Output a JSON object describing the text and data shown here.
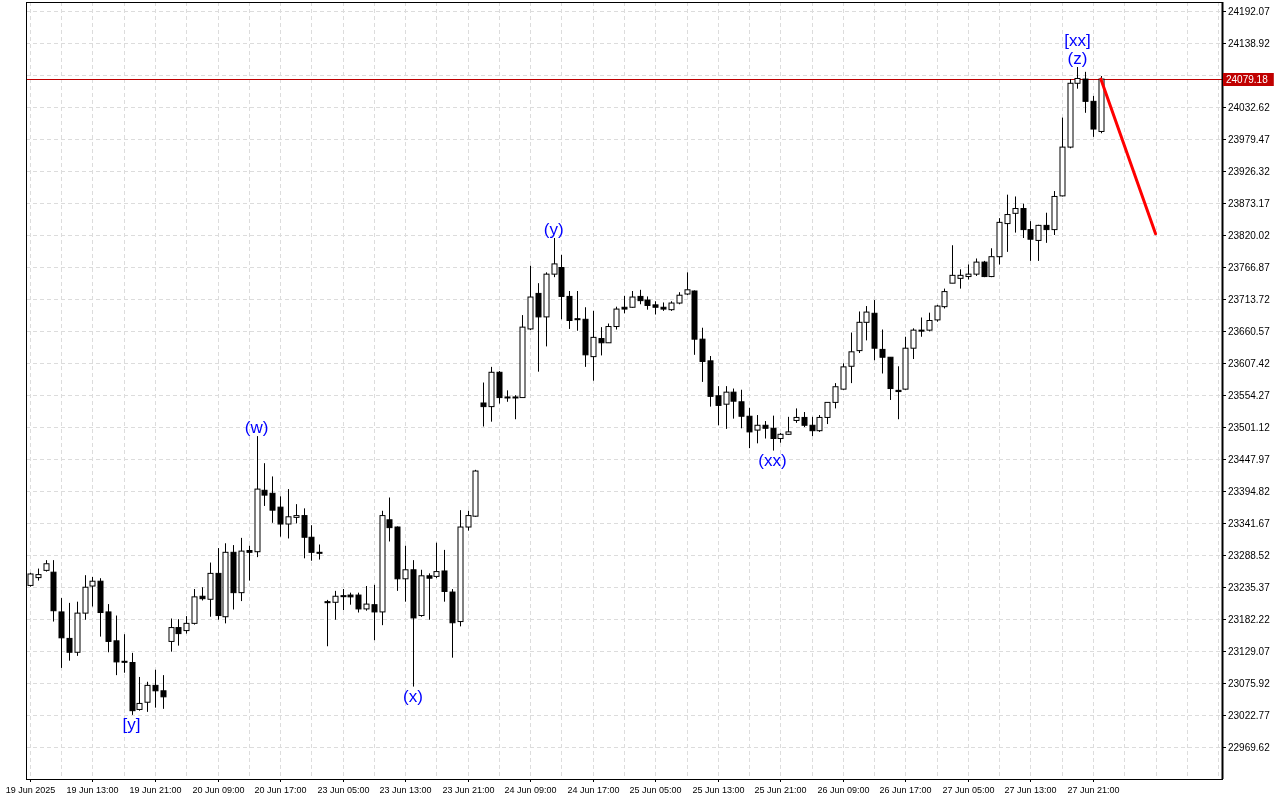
{
  "chart_data": {
    "type": "candlestick",
    "color": "#000000",
    "categories": [
      "19 Jun 2025",
      null,
      null,
      null,
      null,
      null,
      null,
      null,
      "19 Jun 13:00",
      null,
      null,
      null,
      null,
      null,
      null,
      null,
      "19 Jun 21:00",
      null,
      null,
      null,
      null,
      null,
      null,
      null,
      "20 Jun 09:00",
      null,
      null,
      null,
      null,
      null,
      null,
      null,
      "20 Jun 17:00",
      null,
      null,
      null,
      null,
      null,
      null,
      null,
      "23 Jun 05:00",
      null,
      null,
      null,
      null,
      null,
      null,
      null,
      "23 Jun 13:00",
      null,
      null,
      null,
      null,
      null,
      null,
      null,
      "23 Jun 21:00",
      null,
      null,
      null,
      null,
      null,
      null,
      null,
      "24 Jun 09:00",
      null,
      null,
      null,
      null,
      null,
      null,
      null,
      "24 Jun 17:00",
      null,
      null,
      null,
      null,
      null,
      null,
      null,
      "25 Jun 05:00",
      null,
      null,
      null,
      null,
      null,
      null,
      null,
      "25 Jun 13:00",
      null,
      null,
      null,
      null,
      null,
      null,
      null,
      "25 Jun 21:00",
      null,
      null,
      null,
      null,
      null,
      null,
      null,
      "26 Jun 09:00",
      null,
      null,
      null,
      null,
      null,
      null,
      null,
      "26 Jun 17:00",
      null,
      null,
      null,
      null,
      null,
      null,
      null,
      "27 Jun 05:00",
      null,
      null,
      null,
      null,
      null,
      null,
      null,
      "27 Jun 13:00",
      null,
      null,
      null,
      null,
      null,
      null,
      null,
      "27 Jun 21:00",
      null,
      null,
      null,
      null,
      null,
      null,
      null,
      null,
      null,
      null,
      null,
      null,
      null,
      null,
      null,
      null
    ],
    "ohlc": [
      [
        23238,
        23259,
        23236,
        23257
      ],
      [
        23251,
        23266,
        23246,
        23256
      ],
      [
        23263,
        23280,
        23261,
        23274
      ],
      [
        23260,
        23280,
        23178,
        23196
      ],
      [
        23194,
        23217,
        23101,
        23151
      ],
      [
        23150,
        23209,
        23113,
        23127
      ],
      [
        23127,
        23211,
        23121,
        23192
      ],
      [
        23192,
        23255,
        23181,
        23235
      ],
      [
        23237,
        23252,
        23203,
        23245
      ],
      [
        23245,
        23250,
        23153,
        23193
      ],
      [
        23194,
        23207,
        23127,
        23145
      ],
      [
        23146,
        23188,
        23089,
        23111
      ],
      [
        23112,
        23157,
        23093,
        23111
      ],
      [
        23110,
        23126,
        23023,
        23030
      ],
      [
        23032,
        23086,
        23030,
        23042
      ],
      [
        23044,
        23078,
        23028,
        23072
      ],
      [
        23072,
        23098,
        23035,
        23063
      ],
      [
        23063,
        23089,
        23033,
        23053
      ],
      [
        23145,
        23183,
        23128,
        23168
      ],
      [
        23168,
        23182,
        23138,
        23158
      ],
      [
        23163,
        23187,
        23158,
        23175
      ],
      [
        23175,
        23232,
        23173,
        23219
      ],
      [
        23220,
        23235,
        23213,
        23216
      ],
      [
        23215,
        23276,
        23186,
        23258
      ],
      [
        23258,
        23300,
        23181,
        23188
      ],
      [
        23186,
        23308,
        23175,
        23293
      ],
      [
        23293,
        23305,
        23198,
        23226
      ],
      [
        23226,
        23317,
        23212,
        23295
      ],
      [
        23296,
        23304,
        23246,
        23293
      ],
      [
        23294,
        23486,
        23285,
        23398
      ],
      [
        23396,
        23441,
        23370,
        23388
      ],
      [
        23391,
        23419,
        23342,
        23363
      ],
      [
        23368,
        23386,
        23319,
        23340
      ],
      [
        23340,
        23398,
        23316,
        23352
      ],
      [
        23351,
        23373,
        23341,
        23354
      ],
      [
        23354,
        23366,
        23283,
        23318
      ],
      [
        23318,
        23338,
        23279,
        23293
      ],
      [
        23293,
        23306,
        23281,
        23292
      ],
      [
        23211,
        23214,
        23137,
        23210
      ],
      [
        23210,
        23229,
        23181,
        23220
      ],
      [
        23221,
        23232,
        23197,
        23220
      ],
      [
        23222,
        23226,
        23206,
        23219
      ],
      [
        23222,
        23226,
        23193,
        23199
      ],
      [
        23199,
        23237,
        23196,
        23207
      ],
      [
        23206,
        23239,
        23147,
        23194
      ],
      [
        23194,
        23362,
        23172,
        23354
      ],
      [
        23347,
        23384,
        23311,
        23334
      ],
      [
        23335,
        23336,
        23229,
        23249
      ],
      [
        23249,
        23304,
        23211,
        23264
      ],
      [
        23264,
        23280,
        23070,
        23184
      ],
      [
        23188,
        23264,
        23186,
        23254
      ],
      [
        23254,
        23258,
        23181,
        23250
      ],
      [
        23253,
        23309,
        23250,
        23261
      ],
      [
        23262,
        23297,
        23211,
        23228
      ],
      [
        23227,
        23232,
        23118,
        23176
      ],
      [
        23178,
        23363,
        23170,
        23335
      ],
      [
        23335,
        23362,
        23329,
        23354
      ],
      [
        23353,
        23430,
        23352,
        23428
      ],
      [
        23541,
        23575,
        23502,
        23535
      ],
      [
        23535,
        23601,
        23510,
        23592
      ],
      [
        23592,
        23594,
        23540,
        23550
      ],
      [
        23551,
        23562,
        23543,
        23550
      ],
      [
        23551,
        23554,
        23514,
        23550
      ],
      [
        23550,
        23687,
        23550,
        23667
      ],
      [
        23664,
        23769,
        23662,
        23717
      ],
      [
        23723,
        23740,
        23593,
        23684
      ],
      [
        23684,
        23758,
        23635,
        23755
      ],
      [
        23755,
        23815,
        23750,
        23772
      ],
      [
        23766,
        23787,
        23680,
        23718
      ],
      [
        23718,
        23727,
        23664,
        23678
      ],
      [
        23681,
        23727,
        23661,
        23680
      ],
      [
        23680,
        23700,
        23601,
        23621
      ],
      [
        23618,
        23694,
        23578,
        23650
      ],
      [
        23648,
        23667,
        23620,
        23641
      ],
      [
        23641,
        23673,
        23641,
        23668
      ],
      [
        23668,
        23701,
        23663,
        23697
      ],
      [
        23700,
        23719,
        23690,
        23697
      ],
      [
        23700,
        23727,
        23699,
        23717
      ],
      [
        23718,
        23729,
        23705,
        23711
      ],
      [
        23712,
        23718,
        23696,
        23703
      ],
      [
        23704,
        23710,
        23688,
        23700
      ],
      [
        23700,
        23708,
        23694,
        23697
      ],
      [
        23696,
        23710,
        23694,
        23707
      ],
      [
        23707,
        23725,
        23705,
        23720
      ],
      [
        23722,
        23758,
        23720,
        23729
      ],
      [
        23727,
        23728,
        23621,
        23647
      ],
      [
        23647,
        23666,
        23576,
        23610
      ],
      [
        23611,
        23619,
        23535,
        23552
      ],
      [
        23553,
        23569,
        23504,
        23537
      ],
      [
        23539,
        23569,
        23498,
        23559
      ],
      [
        23559,
        23565,
        23515,
        23544
      ],
      [
        23543,
        23563,
        23499,
        23519
      ],
      [
        23519,
        23533,
        23466,
        23493
      ],
      [
        23496,
        23521,
        23474,
        23504
      ],
      [
        23504,
        23511,
        23482,
        23499
      ],
      [
        23499,
        23520,
        23462,
        23482
      ],
      [
        23482,
        23491,
        23475,
        23489
      ],
      [
        23489,
        23518,
        23488,
        23493
      ],
      [
        23512,
        23532,
        23508,
        23517
      ],
      [
        23517,
        23526,
        23501,
        23504
      ],
      [
        23504,
        23518,
        23486,
        23495
      ],
      [
        23495,
        23521,
        23493,
        23517
      ],
      [
        23517,
        23542,
        23506,
        23542
      ],
      [
        23542,
        23574,
        23532,
        23568
      ],
      [
        23564,
        23607,
        23563,
        23601
      ],
      [
        23602,
        23658,
        23574,
        23626
      ],
      [
        23628,
        23693,
        23624,
        23675
      ],
      [
        23675,
        23702,
        23645,
        23692
      ],
      [
        23690,
        23712,
        23612,
        23632
      ],
      [
        23630,
        23663,
        23590,
        23617
      ],
      [
        23617,
        23617,
        23546,
        23565
      ],
      [
        23562,
        23602,
        23514,
        23560
      ],
      [
        23564,
        23651,
        23563,
        23632
      ],
      [
        23632,
        23665,
        23614,
        23662
      ],
      [
        23662,
        23683,
        23651,
        23661
      ],
      [
        23662,
        23691,
        23660,
        23678
      ],
      [
        23679,
        23704,
        23676,
        23702
      ],
      [
        23701,
        23731,
        23698,
        23726
      ],
      [
        23740,
        23803,
        23740,
        23753
      ],
      [
        23748,
        23763,
        23731,
        23753
      ],
      [
        23751,
        23771,
        23746,
        23755
      ],
      [
        23755,
        23781,
        23752,
        23775
      ],
      [
        23775,
        23777,
        23750,
        23751
      ],
      [
        23751,
        23798,
        23750,
        23784
      ],
      [
        23784,
        23848,
        23771,
        23841
      ],
      [
        23839,
        23887,
        23792,
        23854
      ],
      [
        23856,
        23884,
        23824,
        23864
      ],
      [
        23864,
        23872,
        23815,
        23829
      ],
      [
        23829,
        23843,
        23777,
        23813
      ],
      [
        23811,
        23837,
        23777,
        23836
      ],
      [
        23836,
        23857,
        23807,
        23829
      ],
      [
        23829,
        23893,
        23820,
        23884
      ],
      [
        23885,
        24015,
        23884,
        23966
      ],
      [
        23966,
        24079,
        23964,
        24072
      ],
      [
        24072,
        24099,
        24063,
        24080
      ],
      [
        24079,
        24091,
        24023,
        24042
      ],
      [
        24042,
        24051,
        23983,
        23996
      ],
      [
        23992,
        24084,
        23989,
        24079
      ],
      null,
      null,
      null,
      null,
      null,
      null,
      null,
      null,
      null,
      null,
      null,
      null,
      null,
      null,
      null
    ],
    "series": [
      {
        "type": "line",
        "color": "#ff0000",
        "values": [
          null,
          null,
          null,
          null,
          null,
          null,
          null,
          null,
          null,
          null,
          null,
          null,
          null,
          null,
          null,
          null,
          null,
          null,
          null,
          null,
          null,
          null,
          null,
          null,
          null,
          null,
          null,
          null,
          null,
          null,
          null,
          null,
          null,
          null,
          null,
          null,
          null,
          null,
          null,
          null,
          null,
          null,
          null,
          null,
          null,
          null,
          null,
          null,
          null,
          null,
          null,
          null,
          null,
          null,
          null,
          null,
          null,
          null,
          null,
          null,
          null,
          null,
          null,
          null,
          null,
          null,
          null,
          null,
          null,
          null,
          null,
          null,
          null,
          null,
          null,
          null,
          null,
          null,
          null,
          null,
          null,
          null,
          null,
          null,
          null,
          null,
          null,
          null,
          null,
          null,
          null,
          null,
          null,
          null,
          null,
          null,
          null,
          null,
          null,
          null,
          null,
          null,
          null,
          null,
          null,
          null,
          null,
          null,
          null,
          null,
          null,
          null,
          null,
          null,
          null,
          null,
          null,
          null,
          null,
          null,
          null,
          null,
          null,
          null,
          null,
          null,
          null,
          null,
          null,
          null,
          null,
          null,
          null,
          null,
          null,
          null,
          null,
          24079,
          null,
          null,
          null,
          null,
          null,
          null,
          23822,
          null,
          null,
          null,
          null,
          null,
          null,
          null,
          null
        ]
      }
    ],
    "ylim": [
      22916.5,
      24207
    ],
    "yticks": [
      22969.62,
      23022.77,
      23075.92,
      23129.07,
      23182.22,
      23235.37,
      23288.52,
      23341.67,
      23394.82,
      23447.97,
      23501.12,
      23554.27,
      23607.42,
      23660.57,
      23713.72,
      23766.87,
      23820.02,
      23873.17,
      23926.32,
      23979.47,
      24032.62,
      {
        "value": 24085.77,
        "label": null
      },
      24138.92,
      24192.07
    ],
    "grid": true,
    "ref_lines": [
      {
        "axis": "y",
        "value": 24079.18,
        "label": "24079.18",
        "color": "#c00000"
      }
    ],
    "annotations": [
      {
        "text": "[y]",
        "y": 23023
      },
      {
        "text": "(w)",
        "y": 23486
      },
      {
        "text": "(x)",
        "y": 23070
      },
      {
        "text": "(y)",
        "y": 23815
      },
      {
        "text": "(xx)",
        "y": 23462
      },
      {
        "text": "(z)",
        "y": 24099
      },
      {
        "text": "[xx]",
        "y": 24099
      }
    ]
  }
}
